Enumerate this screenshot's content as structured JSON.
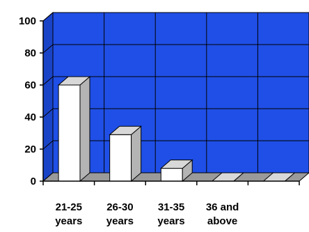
{
  "chart_data": {
    "type": "bar",
    "style": "3d",
    "categories": [
      [
        "21-25",
        "years"
      ],
      [
        "26-30",
        "years"
      ],
      [
        "31-35",
        "years"
      ],
      [
        "36 and",
        "above"
      ],
      [
        "",
        ""
      ]
    ],
    "values": [
      60,
      29,
      8,
      0,
      0
    ],
    "ylim": [
      0,
      100
    ],
    "yticks": [
      0,
      20,
      40,
      60,
      80,
      100
    ],
    "grid": true,
    "colors": {
      "wall": "#1f4fe6",
      "wall_side": "#1a44c8",
      "grid": "#000000",
      "floor": "#9a9a9a",
      "bar_front": "#ffffff",
      "bar_side": "#b4b4b4",
      "bar_top": "#d8d8d8"
    }
  }
}
